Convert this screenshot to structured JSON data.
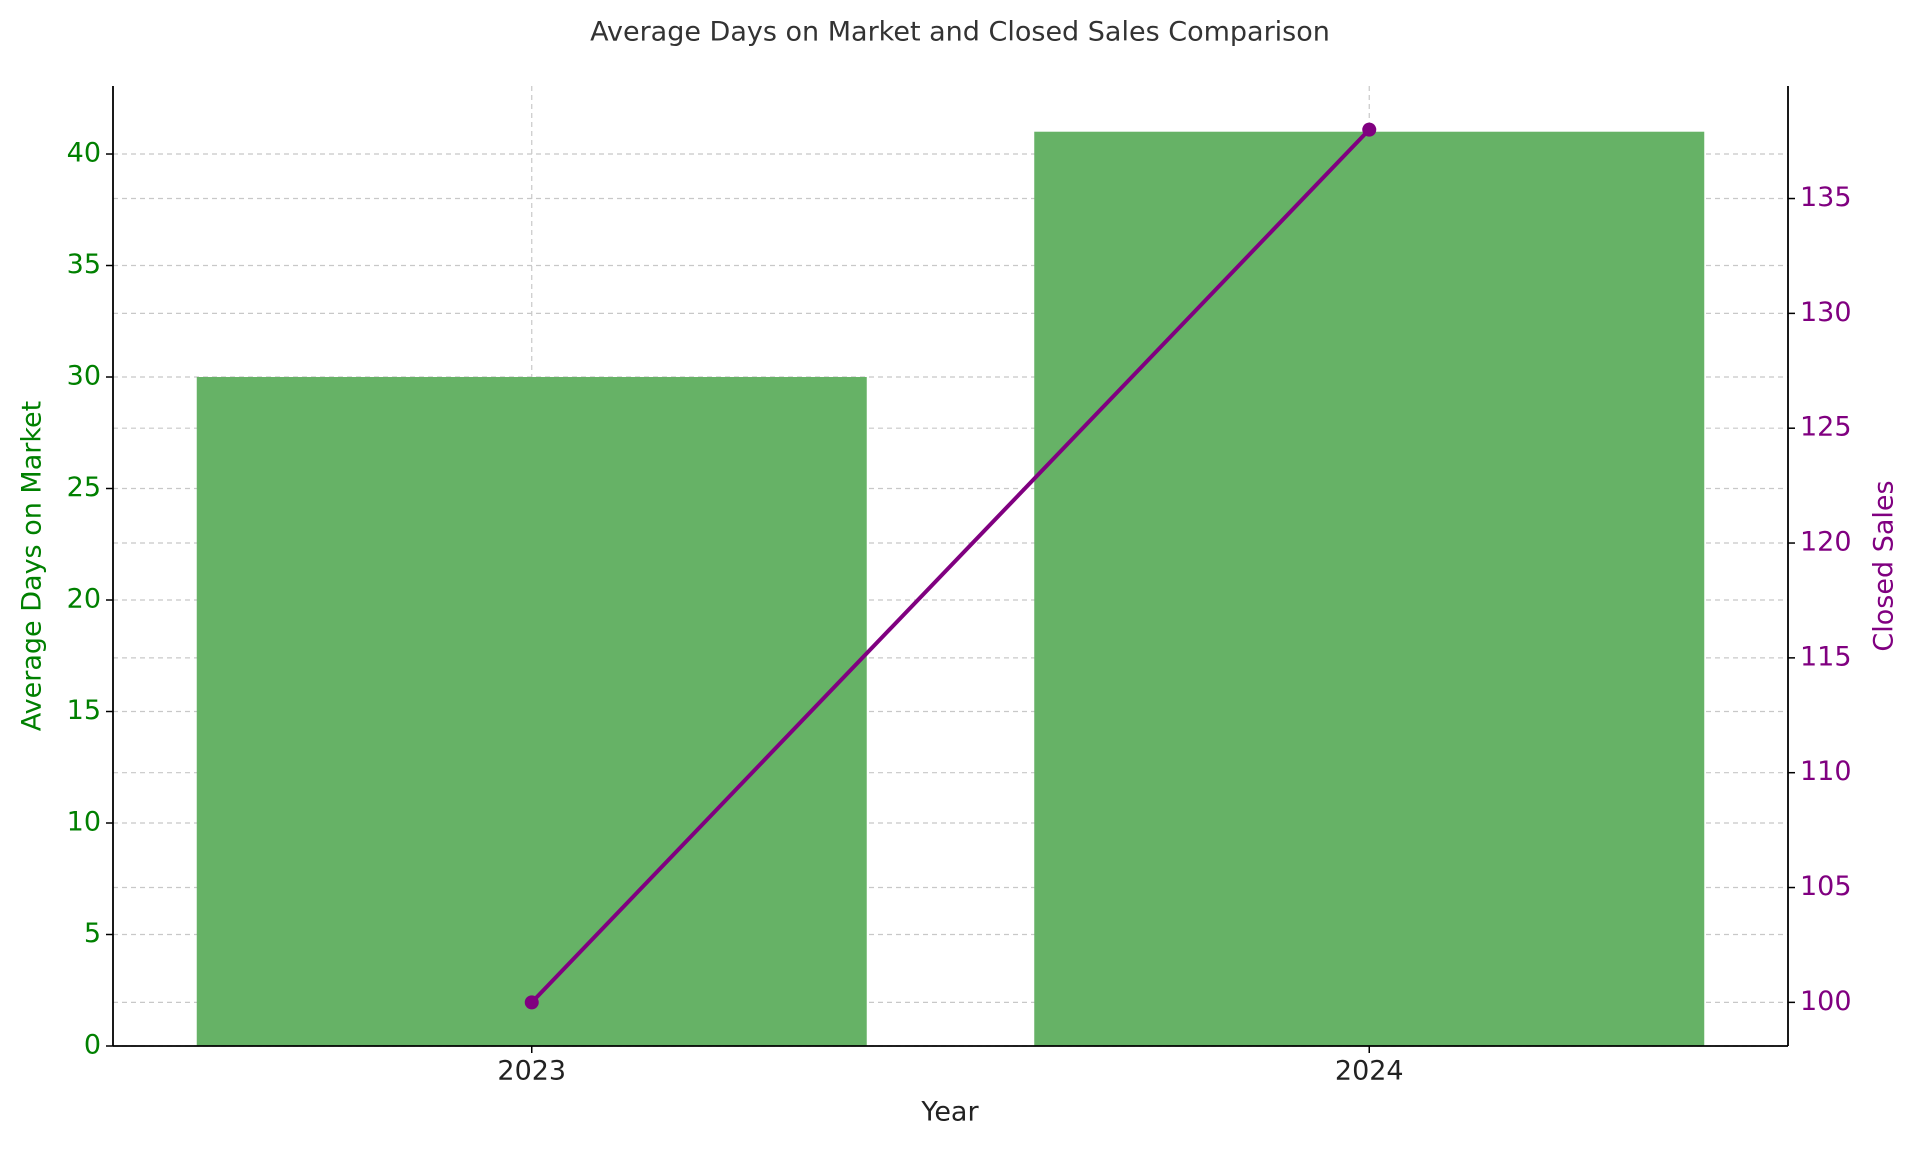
{
  "chart_data": {
    "type": "bar",
    "title": "Average Days on Market and Closed Sales Comparison",
    "x_label": "Year",
    "y_label": "Average Days on Market",
    "y2_label": "Closed Sales",
    "categories": [
      "2023",
      "2024"
    ],
    "series": [
      {
        "type": "bar",
        "color": "#66b266",
        "values": [
          30,
          41
        ]
      },
      {
        "type": "line",
        "axis": "y2",
        "color": "#800080",
        "values": [
          100,
          138
        ]
      }
    ],
    "ylim": [
      0,
      43.05
    ],
    "yticks": [
      0,
      5,
      10,
      15,
      20,
      25,
      30,
      35,
      40
    ],
    "y2lim": [
      98.1,
      139.9
    ],
    "y2ticks": [
      100,
      105,
      110,
      115,
      120,
      125,
      130,
      135
    ],
    "y_color": "#008000",
    "y2_color": "#800080",
    "grid": true
  }
}
